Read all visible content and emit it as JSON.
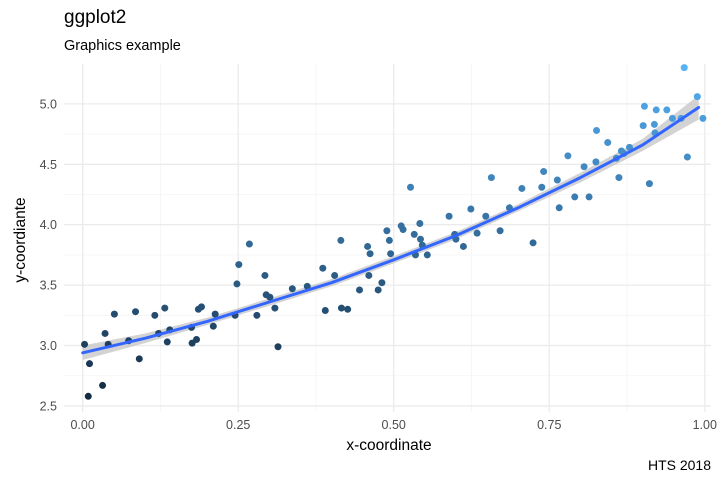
{
  "chart_data": {
    "type": "scatter",
    "title": "ggplot2",
    "subtitle": "Graphics example",
    "caption": "HTS 2018",
    "xlabel": "x-coordinate",
    "ylabel": "y-coordiante",
    "xlim": [
      -0.03,
      1.01
    ],
    "ylim": [
      2.45,
      5.33
    ],
    "x_ticks": [
      0.0,
      0.25,
      0.5,
      0.75,
      1.0
    ],
    "x_tick_labels": [
      "0.00",
      "0.25",
      "0.50",
      "0.75",
      "1.00"
    ],
    "y_ticks": [
      2.5,
      3.0,
      3.5,
      4.0,
      4.5,
      5.0
    ],
    "y_tick_labels": [
      "2.5",
      "3.0",
      "3.5",
      "4.0",
      "4.5",
      "5.0"
    ],
    "grid": true,
    "legend": "none",
    "point_color_scale": {
      "low": "#132b43",
      "high": "#56b1f7"
    },
    "points": [
      [
        0.003,
        3.01
      ],
      [
        0.009,
        2.58
      ],
      [
        0.011,
        2.85
      ],
      [
        0.032,
        2.67
      ],
      [
        0.036,
        3.1
      ],
      [
        0.041,
        3.01
      ],
      [
        0.051,
        3.26
      ],
      [
        0.074,
        3.04
      ],
      [
        0.085,
        3.28
      ],
      [
        0.091,
        2.89
      ],
      [
        0.116,
        3.25
      ],
      [
        0.122,
        3.1
      ],
      [
        0.132,
        3.31
      ],
      [
        0.136,
        3.03
      ],
      [
        0.14,
        3.13
      ],
      [
        0.175,
        3.15
      ],
      [
        0.176,
        3.02
      ],
      [
        0.183,
        3.05
      ],
      [
        0.186,
        3.3
      ],
      [
        0.191,
        3.32
      ],
      [
        0.213,
        3.26
      ],
      [
        0.21,
        3.16
      ],
      [
        0.245,
        3.25
      ],
      [
        0.248,
        3.51
      ],
      [
        0.251,
        3.67
      ],
      [
        0.268,
        3.84
      ],
      [
        0.28,
        3.25
      ],
      [
        0.293,
        3.58
      ],
      [
        0.295,
        3.42
      ],
      [
        0.301,
        3.4
      ],
      [
        0.309,
        3.31
      ],
      [
        0.314,
        2.99
      ],
      [
        0.337,
        3.47
      ],
      [
        0.361,
        3.49
      ],
      [
        0.386,
        3.64
      ],
      [
        0.39,
        3.29
      ],
      [
        0.405,
        3.58
      ],
      [
        0.415,
        3.87
      ],
      [
        0.416,
        3.31
      ],
      [
        0.426,
        3.3
      ],
      [
        0.445,
        3.46
      ],
      [
        0.458,
        3.82
      ],
      [
        0.46,
        3.58
      ],
      [
        0.462,
        3.76
      ],
      [
        0.475,
        3.46
      ],
      [
        0.481,
        3.52
      ],
      [
        0.489,
        3.95
      ],
      [
        0.493,
        3.87
      ],
      [
        0.495,
        3.76
      ],
      [
        0.512,
        3.99
      ],
      [
        0.515,
        3.96
      ],
      [
        0.527,
        4.31
      ],
      [
        0.533,
        3.92
      ],
      [
        0.535,
        3.75
      ],
      [
        0.542,
        4.01
      ],
      [
        0.543,
        3.88
      ],
      [
        0.546,
        3.83
      ],
      [
        0.554,
        3.75
      ],
      [
        0.589,
        4.07
      ],
      [
        0.598,
        3.92
      ],
      [
        0.6,
        3.88
      ],
      [
        0.612,
        3.82
      ],
      [
        0.624,
        4.13
      ],
      [
        0.634,
        3.93
      ],
      [
        0.648,
        4.07
      ],
      [
        0.657,
        4.39
      ],
      [
        0.671,
        3.95
      ],
      [
        0.686,
        4.14
      ],
      [
        0.706,
        4.3
      ],
      [
        0.724,
        3.85
      ],
      [
        0.738,
        4.31
      ],
      [
        0.741,
        4.44
      ],
      [
        0.763,
        4.37
      ],
      [
        0.766,
        4.14
      ],
      [
        0.78,
        4.57
      ],
      [
        0.791,
        4.23
      ],
      [
        0.806,
        4.48
      ],
      [
        0.814,
        4.23
      ],
      [
        0.825,
        4.52
      ],
      [
        0.826,
        4.78
      ],
      [
        0.844,
        4.68
      ],
      [
        0.858,
        4.55
      ],
      [
        0.862,
        4.39
      ],
      [
        0.866,
        4.61
      ],
      [
        0.87,
        4.59
      ],
      [
        0.879,
        4.64
      ],
      [
        0.901,
        4.82
      ],
      [
        0.903,
        4.98
      ],
      [
        0.911,
        4.34
      ],
      [
        0.919,
        4.83
      ],
      [
        0.92,
        4.76
      ],
      [
        0.922,
        4.95
      ],
      [
        0.939,
        4.95
      ],
      [
        0.948,
        4.88
      ],
      [
        0.962,
        4.88
      ],
      [
        0.967,
        5.3
      ],
      [
        0.972,
        4.56
      ],
      [
        0.988,
        5.06
      ],
      [
        0.997,
        4.88
      ]
    ],
    "fit": {
      "method": "smooth",
      "color": "#3366ff",
      "band_color": "#c4c4c4",
      "x": [
        0.0,
        0.1,
        0.2,
        0.3,
        0.4,
        0.5,
        0.6,
        0.7,
        0.8,
        0.9,
        0.99
      ],
      "y": [
        2.94,
        3.06,
        3.2,
        3.36,
        3.52,
        3.71,
        3.91,
        4.14,
        4.39,
        4.66,
        4.97
      ],
      "lower": [
        2.88,
        3.02,
        3.17,
        3.33,
        3.49,
        3.68,
        3.88,
        4.11,
        4.35,
        4.61,
        4.87
      ],
      "upper": [
        3.0,
        3.1,
        3.23,
        3.39,
        3.55,
        3.74,
        3.94,
        4.17,
        4.43,
        4.71,
        5.07
      ]
    }
  }
}
